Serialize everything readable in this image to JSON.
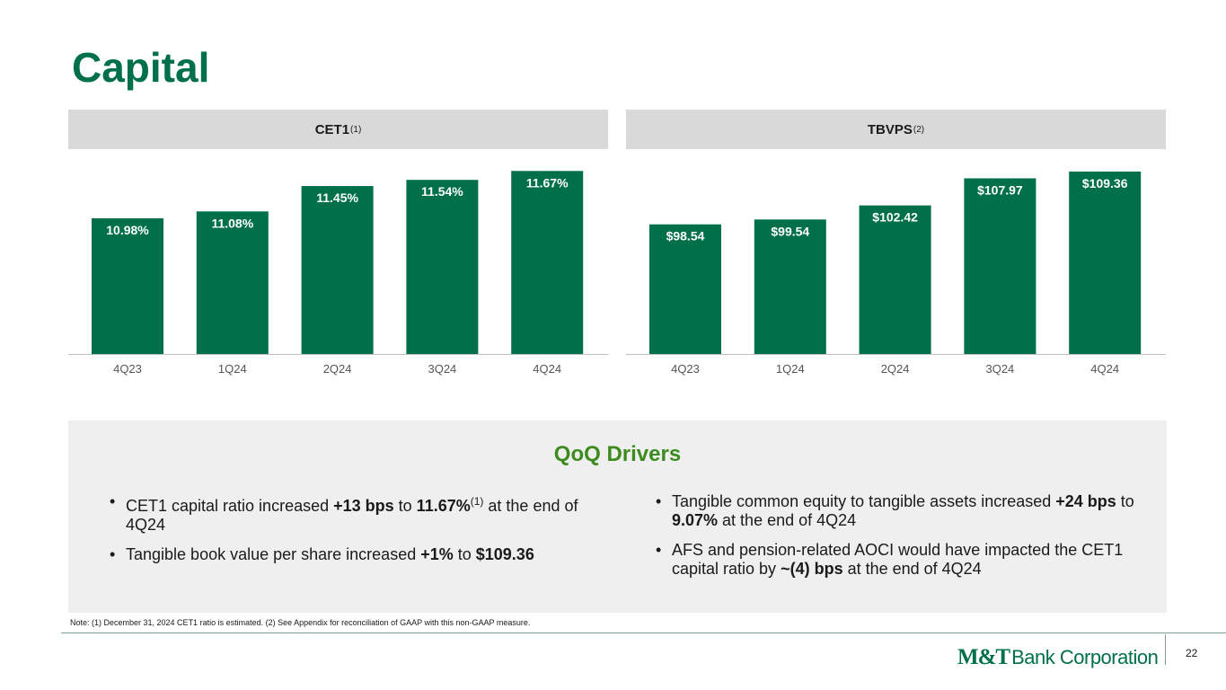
{
  "page": {
    "title": "Capital",
    "page_number": "22",
    "note": "Note: (1) December 31, 2024 CET1 ratio is estimated. (2) See Appendix for reconciliation of GAAP with this non-GAAP measure.",
    "logo": {
      "strong": "M&T",
      "rest": "Bank Corporation"
    }
  },
  "colors": {
    "bar": "#00704a",
    "title": "#00704a",
    "drivers_title": "#3d8b1f",
    "panel_head": "#d9d9d9"
  },
  "chart_data": [
    {
      "type": "bar",
      "title": "CET1",
      "title_sup": "(1)",
      "categories": [
        "4Q23",
        "1Q24",
        "2Q24",
        "3Q24",
        "4Q24"
      ],
      "values": [
        10.98,
        11.08,
        11.45,
        11.54,
        11.67
      ],
      "labels": [
        "10.98%",
        "11.08%",
        "11.45%",
        "11.54%",
        "11.67%"
      ],
      "ylim": [
        9.0,
        11.7
      ],
      "xlabel": "",
      "ylabel": ""
    },
    {
      "type": "bar",
      "title": "TBVPS",
      "title_sup": "(2)",
      "categories": [
        "4Q23",
        "1Q24",
        "2Q24",
        "3Q24",
        "4Q24"
      ],
      "values": [
        98.54,
        99.54,
        102.42,
        107.97,
        109.36
      ],
      "labels": [
        "$98.54",
        "$99.54",
        "$102.42",
        "$107.97",
        "$109.36"
      ],
      "ylim": [
        72.0,
        109.9
      ],
      "xlabel": "",
      "ylabel": ""
    }
  ],
  "drivers": {
    "title": "QoQ Drivers",
    "left": [
      {
        "parts": [
          {
            "t": "CET1 capital ratio increased ",
            "b": false
          },
          {
            "t": "+13 bps",
            "b": true
          },
          {
            "t": " to ",
            "b": false
          },
          {
            "t": "11.67%",
            "b": true
          },
          {
            "t": "(1)",
            "sup": true
          },
          {
            "t": " at the end of 4Q24",
            "b": false
          }
        ]
      },
      {
        "parts": [
          {
            "t": "Tangible book value per share increased ",
            "b": false
          },
          {
            "t": "+1%",
            "b": true
          },
          {
            "t": " to ",
            "b": false
          },
          {
            "t": "$109.36",
            "b": true
          }
        ]
      }
    ],
    "right": [
      {
        "parts": [
          {
            "t": "Tangible common equity to tangible assets increased ",
            "b": false
          },
          {
            "t": "+24 bps",
            "b": true
          },
          {
            "t": " to ",
            "b": false
          },
          {
            "t": "9.07%",
            "b": true
          },
          {
            "t": " at the end of 4Q24",
            "b": false
          }
        ]
      },
      {
        "parts": [
          {
            "t": "AFS and pension-related AOCI would have impacted the CET1 capital ratio by ",
            "b": false
          },
          {
            "t": "~(4) bps",
            "b": true
          },
          {
            "t": " at the end of 4Q24",
            "b": false
          }
        ]
      }
    ]
  }
}
